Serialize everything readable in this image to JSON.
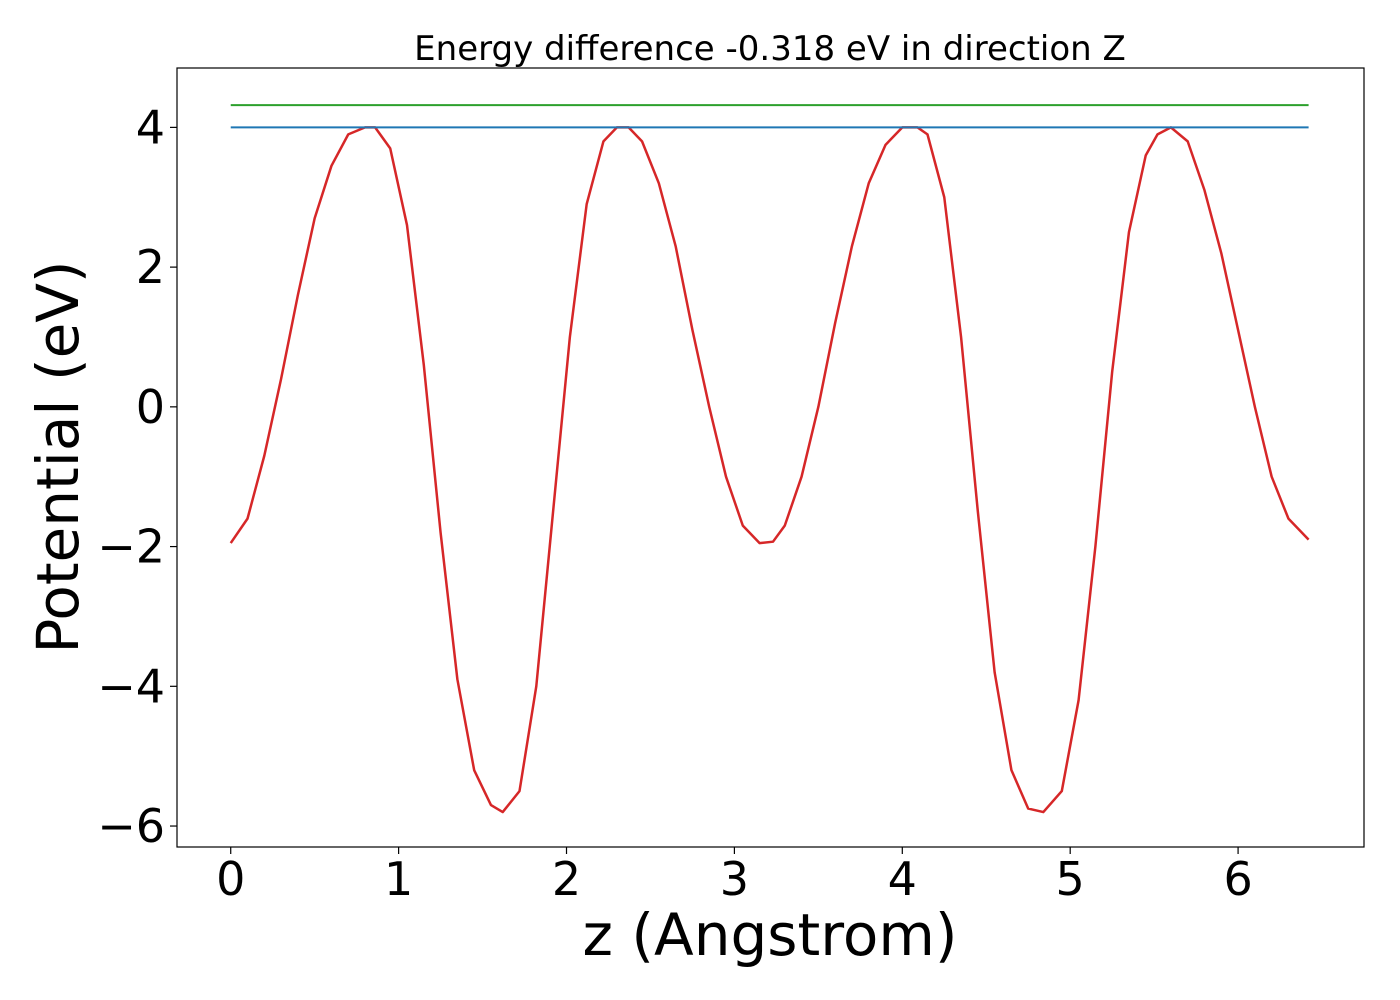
{
  "chart_data": {
    "type": "line",
    "title": "Energy difference -0.318 eV in direction Z",
    "xlabel": "z (Angstrom)",
    "ylabel": "Potential (eV)",
    "xlim": [
      -0.32,
      6.75
    ],
    "ylim": [
      -6.3,
      4.85
    ],
    "xticks": [
      0,
      1,
      2,
      3,
      4,
      5,
      6
    ],
    "xtick_labels": [
      "0",
      "1",
      "2",
      "3",
      "4",
      "5",
      "6"
    ],
    "yticks": [
      -6,
      -4,
      -2,
      0,
      2,
      4
    ],
    "ytick_labels": [
      "−6",
      "−4",
      "−2",
      "0",
      "2",
      "4"
    ],
    "grid": false,
    "series": [
      {
        "color": "#d62728",
        "x": [
          0.0,
          0.1,
          0.2,
          0.3,
          0.4,
          0.5,
          0.6,
          0.7,
          0.8,
          0.86,
          0.95,
          1.05,
          1.15,
          1.25,
          1.35,
          1.45,
          1.55,
          1.62,
          1.72,
          1.82,
          1.92,
          2.02,
          2.12,
          2.22,
          2.3,
          2.37,
          2.45,
          2.55,
          2.65,
          2.75,
          2.85,
          2.95,
          3.05,
          3.15,
          3.23,
          3.3,
          3.4,
          3.5,
          3.6,
          3.7,
          3.8,
          3.9,
          4.0,
          4.09,
          4.15,
          4.25,
          4.35,
          4.45,
          4.55,
          4.65,
          4.75,
          4.84,
          4.95,
          5.05,
          5.15,
          5.25,
          5.35,
          5.45,
          5.52,
          5.6,
          5.7,
          5.8,
          5.9,
          6.0,
          6.1,
          6.2,
          6.3,
          6.42
        ],
        "y": [
          -1.95,
          -1.6,
          -0.7,
          0.4,
          1.6,
          2.7,
          3.45,
          3.9,
          4.0,
          4.0,
          3.7,
          2.6,
          0.6,
          -1.8,
          -3.9,
          -5.2,
          -5.7,
          -5.8,
          -5.5,
          -4.0,
          -1.5,
          1.0,
          2.9,
          3.8,
          4.0,
          4.0,
          3.8,
          3.2,
          2.3,
          1.1,
          0.0,
          -1.0,
          -1.7,
          -1.95,
          -1.93,
          -1.7,
          -1.0,
          0.0,
          1.2,
          2.3,
          3.2,
          3.75,
          4.0,
          4.0,
          3.9,
          3.0,
          1.0,
          -1.5,
          -3.8,
          -5.2,
          -5.75,
          -5.8,
          -5.5,
          -4.2,
          -2.0,
          0.5,
          2.5,
          3.6,
          3.9,
          4.0,
          3.8,
          3.1,
          2.2,
          1.1,
          0.0,
          -1.0,
          -1.6,
          -1.9
        ]
      },
      {
        "color": "#1f77b4",
        "x": [
          0.0,
          6.42
        ],
        "y": [
          4.0,
          4.0
        ]
      },
      {
        "color": "#2ca02c",
        "x": [
          0.0,
          6.42
        ],
        "y": [
          4.318,
          4.318
        ]
      }
    ]
  }
}
